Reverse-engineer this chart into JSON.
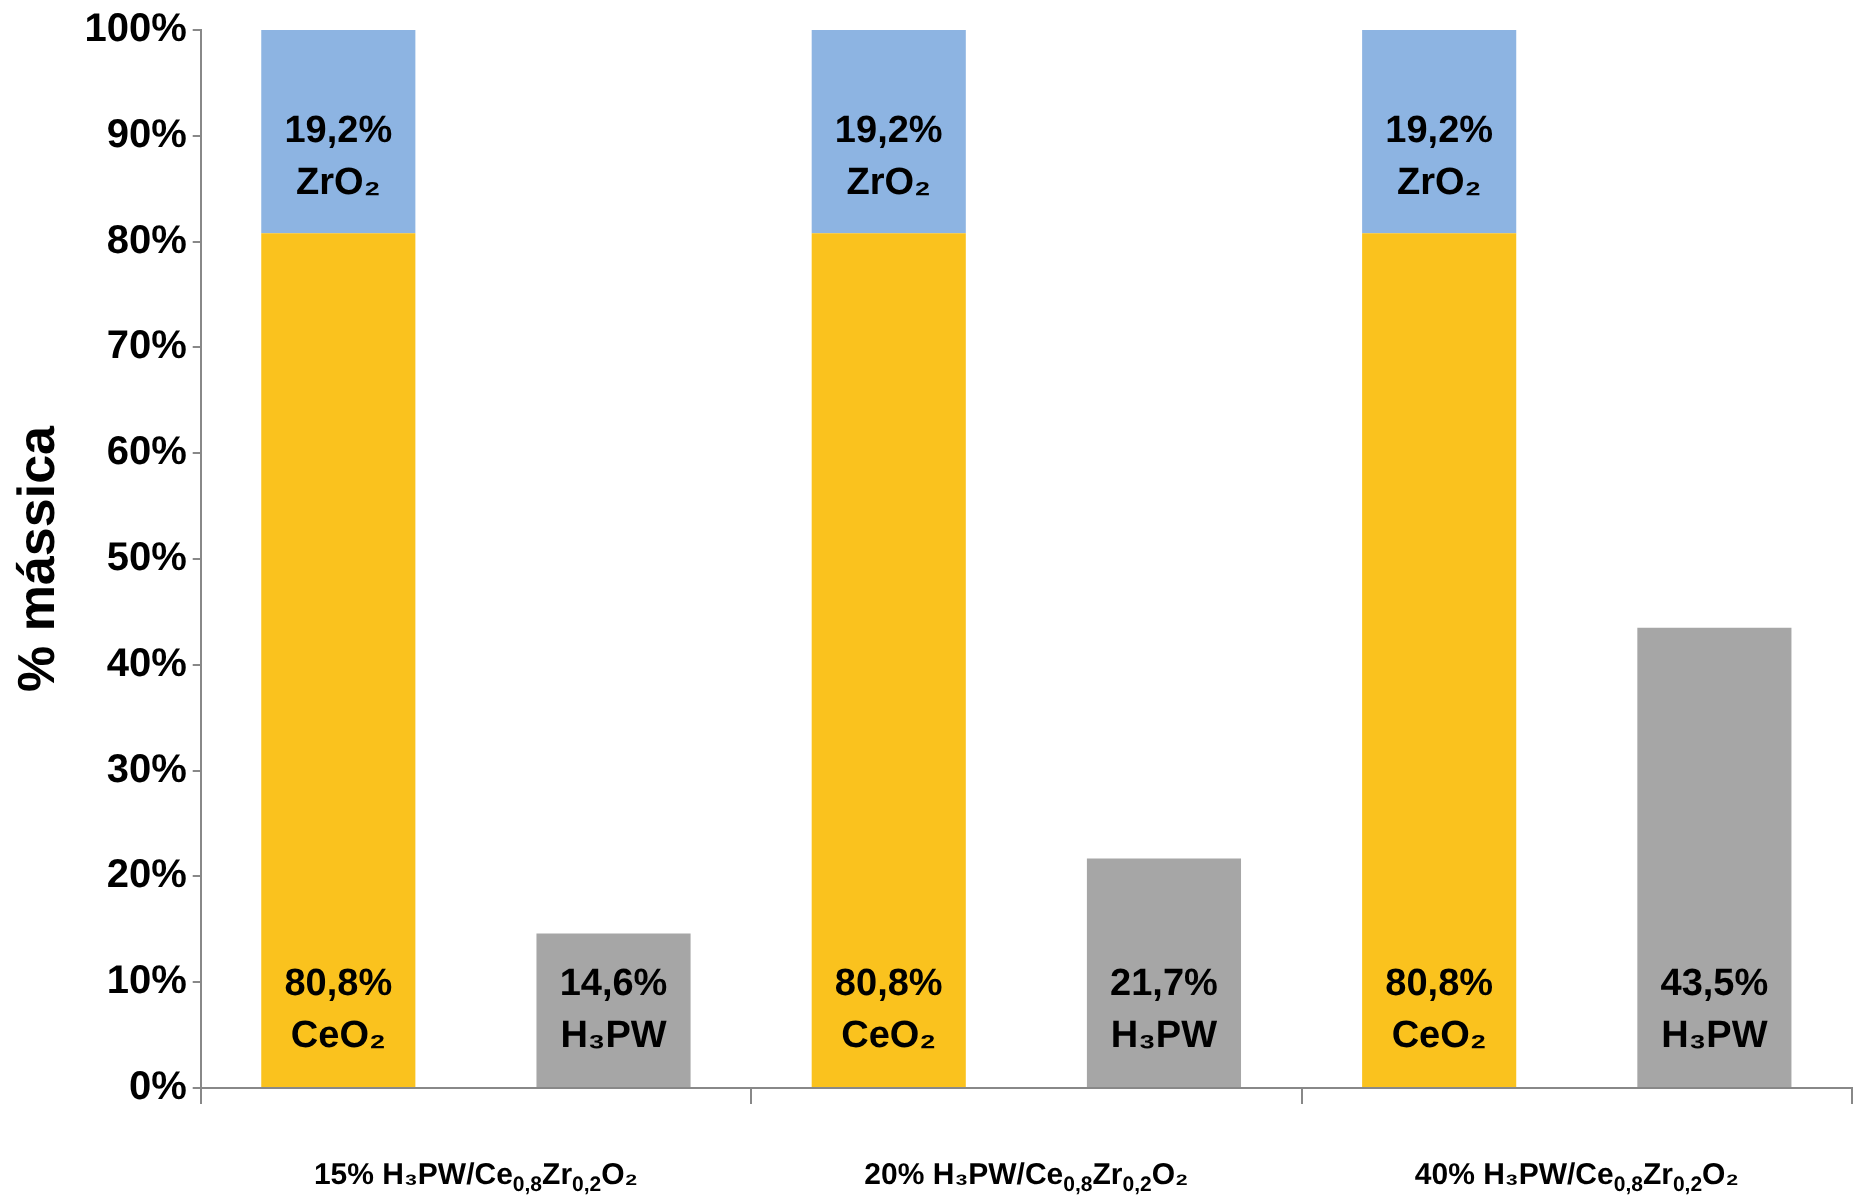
{
  "chart_data": {
    "type": "bar",
    "stacked": true,
    "ylabel": "% mássica",
    "categories": [
      "15% H₃PW/Ce$_{0,8}$Zr$_{0,2}$O₂",
      null,
      "20% H₃PW/Ce$_{0,8}$Zr$_{0,2}$O₂",
      null,
      "40% H₃PW/Ce$_{0,8}$Zr$_{0,2}$O₂",
      null
    ],
    "series": [
      {
        "name": "CeO₂",
        "color": "#fac21e",
        "values": [
          80.8,
          null,
          80.8,
          null,
          80.8,
          null
        ],
        "value_labels": [
          "80,8%",
          null,
          "80,8%",
          null,
          "80,8%",
          null
        ]
      },
      {
        "name": "ZrO₂",
        "color": "#8db4e2",
        "values": [
          19.2,
          null,
          19.2,
          null,
          19.2,
          null
        ],
        "value_labels": [
          "19,2%",
          null,
          "19,2%",
          null,
          "19,2%",
          null
        ]
      },
      {
        "name": "H₃PW",
        "color": "#a6a6a6",
        "values": [
          null,
          14.6,
          null,
          21.7,
          null,
          43.5
        ],
        "value_labels": [
          null,
          "14,6%",
          null,
          "21,7%",
          null,
          "43,5%"
        ]
      }
    ],
    "ylim": [
      0,
      100
    ],
    "yticks": [
      {
        "value": 0,
        "label": "0%"
      },
      {
        "value": 10,
        "label": "10%"
      },
      {
        "value": 20,
        "label": "20%"
      },
      {
        "value": 30,
        "label": "30%"
      },
      {
        "value": 40,
        "label": "40%"
      },
      {
        "value": 50,
        "label": "50%"
      },
      {
        "value": 60,
        "label": "60%"
      },
      {
        "value": 70,
        "label": "70%"
      },
      {
        "value": 80,
        "label": "80%"
      },
      {
        "value": 90,
        "label": "90%"
      },
      {
        "value": 100,
        "label": "100%"
      }
    ],
    "grid": false,
    "legend": false
  }
}
